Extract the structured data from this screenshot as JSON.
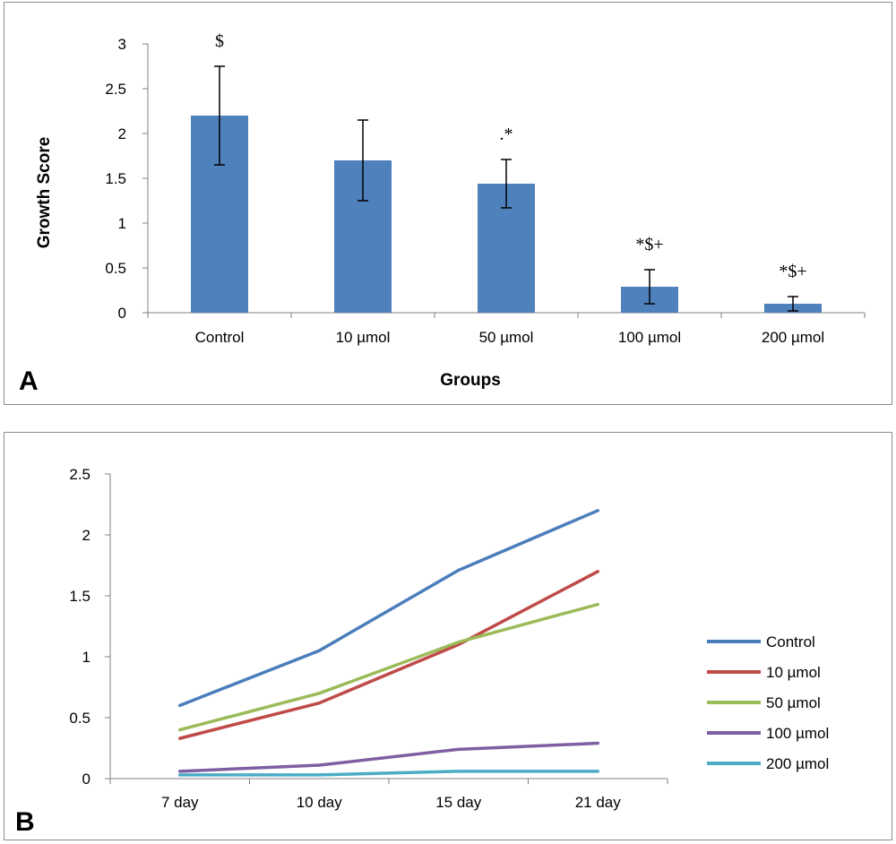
{
  "chart_data": [
    {
      "panel": "A",
      "type": "bar",
      "xlabel": "Groups",
      "ylabel": "Growth Score",
      "categories": [
        "Control",
        "10 µmol",
        "50 µmol",
        "100 µmol",
        "200 µmol"
      ],
      "values": [
        2.2,
        1.7,
        1.44,
        0.29,
        0.1
      ],
      "error": [
        0.55,
        0.45,
        0.27,
        0.19,
        0.08
      ],
      "annotations": [
        "$",
        "",
        ".*",
        "*$+",
        "*$+"
      ],
      "yticks": [
        "0",
        "0.5",
        "1",
        "1.5",
        "2",
        "2.5",
        "3"
      ],
      "ylim": [
        0,
        3
      ],
      "bar_color": "#4f81bd",
      "grid": false
    },
    {
      "panel": "B",
      "type": "line",
      "categories": [
        "7 day",
        "10 day",
        "15 day",
        "21 day"
      ],
      "yticks": [
        "0",
        "0.5",
        "1",
        "1.5",
        "2",
        "2.5"
      ],
      "ylim": [
        0,
        2.5
      ],
      "grid": false,
      "legend_position": "right",
      "series": [
        {
          "name": "Control",
          "color": "#4a7ebb",
          "values": [
            0.6,
            1.05,
            1.71,
            2.2
          ]
        },
        {
          "name": "10  µmol",
          "color": "#be4b48",
          "values": [
            0.33,
            0.62,
            1.1,
            1.7
          ]
        },
        {
          "name": "50  µmol",
          "color": "#9bbb59",
          "values": [
            0.4,
            0.7,
            1.12,
            1.43
          ]
        },
        {
          "name": "100  µmol",
          "color": "#7e5fa2",
          "values": [
            0.06,
            0.11,
            0.24,
            0.29
          ]
        },
        {
          "name": "200  µmol",
          "color": "#4bacc6",
          "values": [
            0.03,
            0.03,
            0.06,
            0.06
          ]
        }
      ]
    }
  ],
  "panels": {
    "a_label": "A",
    "b_label": "B"
  }
}
